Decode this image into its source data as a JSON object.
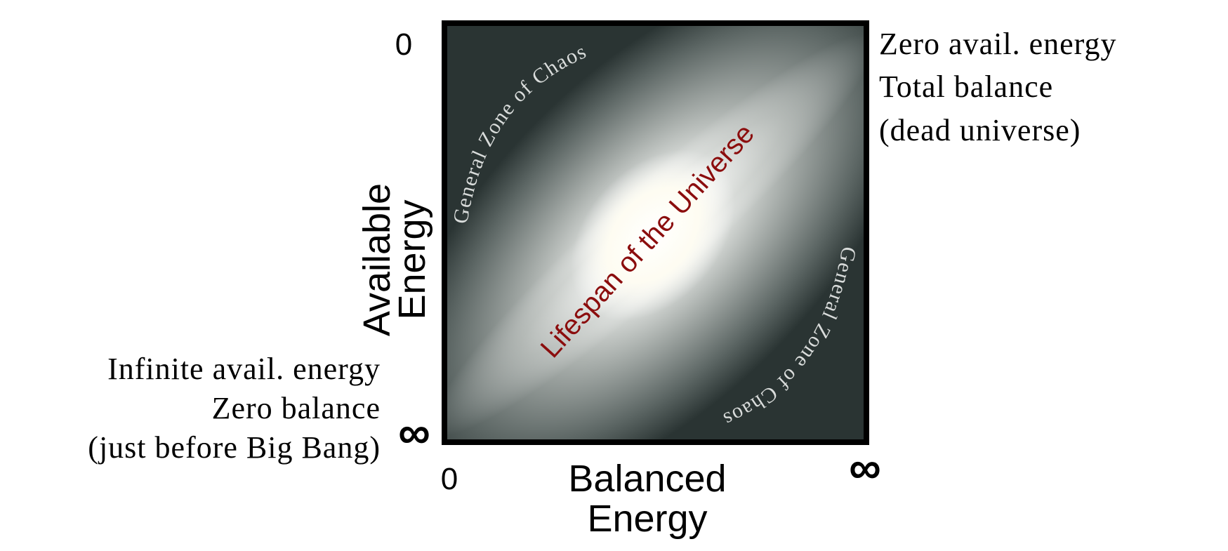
{
  "diagram": {
    "y_axis": {
      "label_line1": "Available",
      "label_line2": "Energy",
      "top_tick": "0",
      "bottom_tick": "∞"
    },
    "x_axis": {
      "label_line1": "Balanced",
      "label_line2": "Energy",
      "left_tick": "0",
      "right_tick": "∞"
    },
    "top_right_note": [
      "Zero avail. energy",
      "Total balance",
      "(dead universe)"
    ],
    "bottom_left_note": [
      "Infinite avail. energy",
      "Zero balance",
      "(just before Big Bang)"
    ],
    "zone_upper": "General Zone of Chaos",
    "zone_lower": "General Zone of Chaos",
    "center_label": "Lifespan of the Universe",
    "colors": {
      "frame": "#000000",
      "background_dark": "#2a3433",
      "glow": "#ffffff",
      "chaos_text": "#d9dcdb",
      "lifespan_text": "#8b0d0d"
    }
  }
}
